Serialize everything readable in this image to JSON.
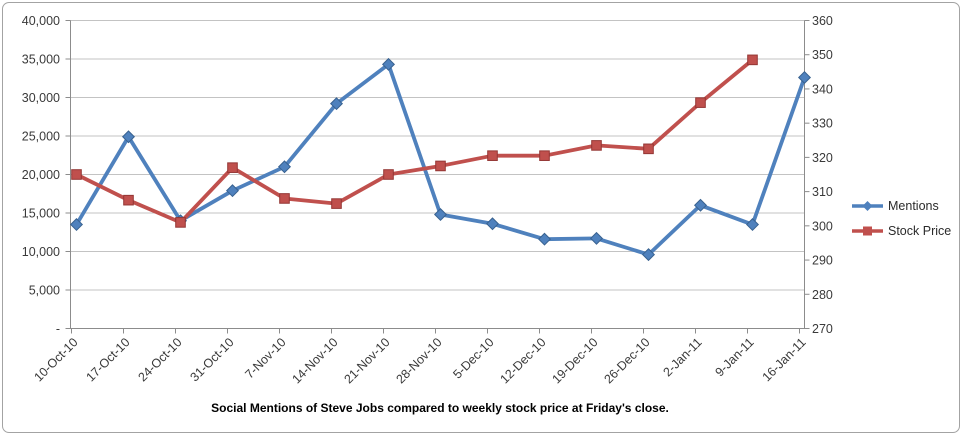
{
  "title": "Social Mentions of Steve Jobs compared to weekly stock price at Friday's close.",
  "colors": {
    "mentions_blue": "#4F81BD",
    "mentions_blue_dark": "#38618F",
    "stock_red": "#C0504D",
    "stock_red_dark": "#943634",
    "gridline": "#c3c3c3",
    "axis_line": "#8c8c8c",
    "tick_text": "#3a3a3a",
    "frame_border": "#a3a3a3"
  },
  "legend": {
    "items": [
      {
        "label": "Mentions",
        "marker": "diamond-marker-icon",
        "color": "#4F81BD"
      },
      {
        "label": "Stock Price",
        "marker": "square-marker-icon",
        "color": "#C0504D"
      }
    ]
  },
  "chart_data": {
    "type": "line",
    "title": "Social Mentions of Steve Jobs compared to weekly stock price at Friday's close.",
    "categories": [
      "10-Oct-10",
      "17-Oct-10",
      "24-Oct-10",
      "31-Oct-10",
      "7-Nov-10",
      "14-Nov-10",
      "21-Nov-10",
      "28-Nov-10",
      "5-Dec-10",
      "12-Dec-10",
      "19-Dec-10",
      "26-Dec-10",
      "2-Jan-11",
      "9-Jan-11",
      "16-Jan-11"
    ],
    "series": [
      {
        "name": "Mentions",
        "axis": "left",
        "marker": "diamond",
        "color": "#4F81BD",
        "values": [
          13500,
          24900,
          14000,
          17900,
          21000,
          29200,
          34300,
          14800,
          13600,
          11600,
          11700,
          9600,
          16000,
          13500,
          32600
        ]
      },
      {
        "name": "Stock Price",
        "axis": "right",
        "marker": "square",
        "color": "#C0504D",
        "values": [
          315,
          307.5,
          301,
          317,
          308,
          306.5,
          315,
          317.5,
          320.5,
          320.5,
          323.5,
          322.5,
          336,
          348.5,
          null
        ]
      }
    ],
    "left_axis": {
      "min": 0,
      "max": 40000,
      "tick_step": 5000,
      "tick_labels": [
        "40,000",
        "35,000",
        "30,000",
        "25,000",
        "20,000",
        "15,000",
        "10,000",
        "5,000",
        "-"
      ]
    },
    "right_axis": {
      "min": 270,
      "max": 360,
      "tick_step": 10,
      "tick_labels": [
        "360",
        "350",
        "340",
        "330",
        "320",
        "310",
        "300",
        "290",
        "280",
        "270"
      ]
    },
    "grid": true,
    "legend_position": "right",
    "x_label_rotation_deg": 45
  }
}
